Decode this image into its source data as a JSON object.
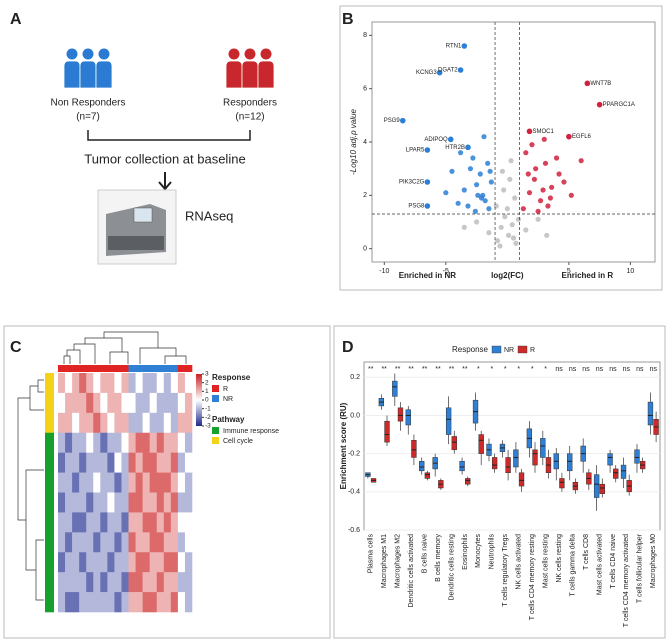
{
  "figure": {
    "panel_labels": [
      "A",
      "B",
      "C",
      "D"
    ]
  },
  "diagram": {
    "groups": [
      {
        "label": "Non Responders",
        "n": "(n=7)",
        "color": "#2a7bd1"
      },
      {
        "label": "Responders",
        "n": "(n=12)",
        "color": "#c8282d"
      }
    ],
    "step": "Tumor collection at baseline",
    "assay": "RNAseq"
  },
  "chart_data": [
    {
      "type": "scatter",
      "y_label": "-Log10 adj.p value",
      "x_label": "log2(FC)",
      "left_label": "Enriched in NR",
      "right_label": "Enriched in R",
      "xlim": [
        -11,
        12
      ],
      "ylim": [
        -0.5,
        8.5
      ],
      "xticks": [
        -10,
        -5,
        5,
        10
      ],
      "yticks": [
        0,
        2,
        4,
        6,
        8
      ],
      "vlines": [
        -1,
        1
      ],
      "hline": 1.3,
      "series": [
        {
          "color": "#2b7fd6",
          "x": [
            -1.5,
            -2,
            -2.5,
            -3,
            -1.8,
            -2.2,
            -3.5,
            -4,
            -1.3,
            -2.8,
            -3.2,
            -1.6,
            -2.4,
            -4.5,
            -5,
            -1.9,
            -2.6,
            -3.8,
            -1.4,
            -2.1
          ],
          "y": [
            1.5,
            2.0,
            2.4,
            3.0,
            1.8,
            2.8,
            2.2,
            1.7,
            2.5,
            3.4,
            1.6,
            3.2,
            2.0,
            2.9,
            2.1,
            4.2,
            1.4,
            3.6,
            2.9,
            1.9
          ]
        },
        {
          "color": "#d0213e",
          "x": [
            1.3,
            1.8,
            2.2,
            2.7,
            3.1,
            3.6,
            4.2,
            1.5,
            2.0,
            2.5,
            3.0,
            3.5,
            4.0,
            4.6,
            5.2,
            1.7,
            2.3,
            2.9,
            3.3,
            6
          ],
          "y": [
            1.5,
            2.1,
            2.6,
            1.8,
            3.2,
            2.3,
            2.8,
            3.6,
            3.9,
            1.4,
            4.1,
            1.9,
            3.4,
            2.5,
            2.0,
            2.8,
            3.0,
            2.2,
            1.6,
            3.3
          ]
        },
        {
          "color": "#bdbdbd",
          "x": [
            -0.8,
            -0.5,
            -0.2,
            0.1,
            0.4,
            0.7,
            -0.9,
            -0.3,
            0.2,
            0.6,
            -1.5,
            -2.5,
            1.5,
            2.5,
            -0.6,
            0.0,
            0.5,
            -3.5,
            3.2,
            0.9,
            -0.4,
            0.3
          ],
          "y": [
            0.3,
            0.8,
            1.2,
            0.5,
            0.9,
            0.2,
            1.6,
            2.2,
            2.6,
            1.9,
            0.6,
            1.0,
            0.7,
            1.1,
            0.1,
            1.5,
            0.4,
            0.8,
            0.5,
            1.1,
            2.9,
            3.3
          ]
        }
      ],
      "genes": [
        {
          "label": "RTN1",
          "x": -3.5,
          "y": 7.6,
          "color": "#2b7fd6"
        },
        {
          "label": "KCNG3",
          "x": -5.5,
          "y": 6.6,
          "color": "#2b7fd6"
        },
        {
          "label": "DGAT2",
          "x": -3.8,
          "y": 6.7,
          "color": "#2b7fd6"
        },
        {
          "label": "PSG9",
          "x": -8.5,
          "y": 4.8,
          "color": "#2b7fd6"
        },
        {
          "label": "ADIPOQ",
          "x": -4.6,
          "y": 4.1,
          "color": "#2b7fd6"
        },
        {
          "label": "HTR2B",
          "x": -3.2,
          "y": 3.8,
          "color": "#2b7fd6"
        },
        {
          "label": "LPAR5",
          "x": -6.5,
          "y": 3.7,
          "color": "#2b7fd6"
        },
        {
          "label": "PIK3C2G",
          "x": -6.5,
          "y": 2.5,
          "color": "#2b7fd6"
        },
        {
          "label": "PSG8",
          "x": -6.5,
          "y": 1.6,
          "color": "#2b7fd6"
        },
        {
          "label": "WNT7B",
          "x": 6.5,
          "y": 6.2,
          "color": "#d0213e"
        },
        {
          "label": "PPARGC1A",
          "x": 7.5,
          "y": 5.4,
          "color": "#d0213e"
        },
        {
          "label": "SMOC1",
          "x": 1.8,
          "y": 4.4,
          "color": "#d0213e"
        },
        {
          "label": "EGFL6",
          "x": 5,
          "y": 4.2,
          "color": "#d0213e"
        }
      ]
    },
    {
      "type": "heatmap",
      "vlim": [
        -3,
        3
      ],
      "colors": [
        "#1d2a8f",
        "#ffffff",
        "#cc1f1f"
      ],
      "colorbar_ticks": [
        3,
        2,
        1,
        0,
        -1,
        -2,
        -3
      ],
      "response_title": "Response",
      "pathway_title": "Pathway",
      "response_legend": [
        {
          "name": "R",
          "color": "#e02424"
        },
        {
          "name": "NR",
          "color": "#2f7fd4"
        }
      ],
      "pathway_legend": [
        {
          "name": "Immune response",
          "color": "#16a02c"
        },
        {
          "name": "Cell cycle",
          "color": "#f4d21a"
        }
      ],
      "columns": [
        "R",
        "R",
        "R",
        "R",
        "R",
        "R",
        "R",
        "R",
        "R",
        "R",
        "NR",
        "NR",
        "NR",
        "NR",
        "NR",
        "NR",
        "NR",
        "R",
        "R"
      ],
      "rows": [
        "Cell cycle",
        "Cell cycle",
        "Cell cycle",
        "Immune response",
        "Immune response",
        "Immune response",
        "Immune response",
        "Immune response",
        "Immune response",
        "Immune response",
        "Immune response",
        "Immune response"
      ],
      "values": [
        [
          1,
          0,
          1,
          2,
          1,
          0,
          1,
          1,
          0,
          1,
          -1,
          0,
          -1,
          -1,
          0,
          -1,
          0,
          1,
          0
        ],
        [
          0,
          1,
          1,
          1,
          2,
          1,
          0,
          1,
          1,
          0,
          0,
          -1,
          -1,
          0,
          -1,
          -1,
          -1,
          0,
          1
        ],
        [
          1,
          1,
          0,
          1,
          1,
          2,
          1,
          0,
          1,
          1,
          -1,
          -1,
          0,
          -1,
          -1,
          0,
          -1,
          1,
          1
        ],
        [
          -1,
          -2,
          -1,
          -1,
          0,
          -1,
          -2,
          -1,
          -1,
          0,
          1,
          2,
          2,
          1,
          2,
          1,
          1,
          0,
          -1
        ],
        [
          -2,
          -1,
          -1,
          -2,
          -1,
          -1,
          -1,
          -2,
          0,
          -1,
          2,
          1,
          2,
          2,
          1,
          1,
          2,
          -1,
          0
        ],
        [
          -1,
          -1,
          -2,
          -1,
          -1,
          0,
          -1,
          -1,
          -2,
          -1,
          1,
          2,
          1,
          2,
          2,
          2,
          1,
          0,
          -1
        ],
        [
          -2,
          -1,
          -1,
          -1,
          -2,
          -1,
          -1,
          0,
          -1,
          -1,
          2,
          2,
          1,
          1,
          2,
          1,
          2,
          -1,
          -1
        ],
        [
          -1,
          -1,
          -2,
          -2,
          -1,
          -1,
          -2,
          -1,
          -1,
          -2,
          1,
          1,
          2,
          2,
          1,
          2,
          1,
          0,
          0
        ],
        [
          -1,
          -2,
          -1,
          -1,
          -1,
          -2,
          -1,
          -1,
          -2,
          -1,
          2,
          1,
          1,
          2,
          2,
          1,
          1,
          -1,
          0
        ],
        [
          -2,
          -1,
          -1,
          -2,
          -1,
          -1,
          -1,
          -2,
          -1,
          -1,
          1,
          2,
          2,
          1,
          1,
          2,
          2,
          0,
          -1
        ],
        [
          -1,
          -1,
          -1,
          -1,
          -2,
          -1,
          -2,
          -1,
          -1,
          -2,
          2,
          2,
          1,
          1,
          2,
          1,
          1,
          -1,
          -1
        ],
        [
          -1,
          -2,
          -2,
          -1,
          -1,
          -1,
          -1,
          -1,
          -2,
          -1,
          1,
          1,
          2,
          2,
          1,
          1,
          2,
          0,
          -1
        ]
      ]
    },
    {
      "type": "box",
      "y_label": "Enrichment score (RU)",
      "legend_title": "Response",
      "ylim": [
        -0.6,
        0.28
      ],
      "yticks": [
        -0.6,
        -0.4,
        -0.2,
        {
          "value": 0,
          "label": "0.0"
        },
        0.2
      ],
      "categories": [
        "Plasma cells",
        "Macrophages M1",
        "Macrophages M2",
        "Dendritic cells activated",
        "B cells naive",
        "B cells memory",
        "Dendritic cells resting",
        "Eosinophils",
        "Monocytes",
        "Neutrophils",
        "T cells regulatory Tregs",
        "NK cells activated",
        "T cells CD4 memory resting",
        "Mast cells resting",
        "NK cells resting",
        "T cells gamma delta",
        "T cells CD8",
        "Mast cells activated",
        "T cells CD4 naive",
        "T cells CD4 memory activated",
        "T cells follicular helper",
        "Macrophages M0"
      ],
      "significance": [
        "**",
        "**",
        "**",
        "**",
        "**",
        "**",
        "**",
        "**",
        "*",
        "*",
        "*",
        "*",
        "*",
        "*",
        "ns",
        "ns",
        "ns",
        "ns",
        "ns",
        "ns",
        "ns",
        "ns"
      ],
      "series": [
        {
          "name": "NR",
          "color": "#2f7fd4",
          "median": [
            -0.31,
            0.07,
            0.15,
            0.0,
            -0.27,
            -0.25,
            -0.02,
            -0.27,
            0.02,
            -0.18,
            -0.17,
            -0.22,
            -0.12,
            -0.16,
            -0.24,
            -0.24,
            -0.2,
            -0.36,
            -0.22,
            -0.29,
            -0.22,
            0.0
          ],
          "q1": [
            -0.32,
            0.05,
            0.1,
            -0.05,
            -0.29,
            -0.28,
            -0.1,
            -0.29,
            -0.04,
            -0.21,
            -0.19,
            -0.27,
            -0.17,
            -0.22,
            -0.28,
            -0.29,
            -0.24,
            -0.43,
            -0.26,
            -0.33,
            -0.25,
            -0.05
          ],
          "q3": [
            -0.3,
            0.09,
            0.18,
            0.03,
            -0.24,
            -0.22,
            0.04,
            -0.24,
            0.08,
            -0.15,
            -0.15,
            -0.18,
            -0.07,
            -0.12,
            -0.2,
            -0.2,
            -0.16,
            -0.31,
            -0.2,
            -0.26,
            -0.18,
            0.07
          ],
          "low": [
            -0.33,
            0.03,
            0.05,
            -0.1,
            -0.31,
            -0.32,
            -0.15,
            -0.31,
            -0.08,
            -0.24,
            -0.22,
            -0.3,
            -0.22,
            -0.26,
            -0.34,
            -0.34,
            -0.3,
            -0.5,
            -0.3,
            -0.38,
            -0.3,
            -0.1
          ],
          "high": [
            -0.3,
            0.11,
            0.22,
            0.05,
            -0.22,
            -0.2,
            0.1,
            -0.22,
            0.12,
            -0.12,
            -0.13,
            -0.14,
            -0.03,
            -0.08,
            -0.17,
            -0.16,
            -0.12,
            -0.26,
            -0.18,
            -0.22,
            -0.15,
            0.12
          ]
        },
        {
          "name": "R",
          "color": "#cf2a2a",
          "median": [
            -0.34,
            -0.1,
            0.0,
            -0.18,
            -0.31,
            -0.36,
            -0.14,
            -0.34,
            -0.13,
            -0.26,
            -0.27,
            -0.34,
            -0.2,
            -0.26,
            -0.35,
            -0.37,
            -0.33,
            -0.38,
            -0.3,
            -0.37,
            -0.26,
            -0.06
          ],
          "q1": [
            -0.35,
            -0.14,
            -0.03,
            -0.22,
            -0.33,
            -0.38,
            -0.18,
            -0.36,
            -0.2,
            -0.28,
            -0.3,
            -0.37,
            -0.26,
            -0.3,
            -0.38,
            -0.39,
            -0.36,
            -0.41,
            -0.33,
            -0.4,
            -0.28,
            -0.1
          ],
          "q3": [
            -0.33,
            -0.03,
            0.04,
            -0.13,
            -0.3,
            -0.34,
            -0.11,
            -0.33,
            -0.1,
            -0.22,
            -0.22,
            -0.3,
            -0.18,
            -0.22,
            -0.33,
            -0.35,
            -0.3,
            -0.36,
            -0.28,
            -0.34,
            -0.24,
            -0.02
          ],
          "low": [
            -0.35,
            -0.16,
            -0.08,
            -0.26,
            -0.34,
            -0.39,
            -0.2,
            -0.37,
            -0.26,
            -0.3,
            -0.34,
            -0.4,
            -0.3,
            -0.33,
            -0.4,
            -0.41,
            -0.39,
            -0.43,
            -0.35,
            -0.42,
            -0.3,
            -0.14
          ],
          "high": [
            -0.33,
            0.0,
            0.07,
            -0.1,
            -0.29,
            -0.33,
            -0.08,
            -0.32,
            -0.08,
            -0.2,
            -0.18,
            -0.28,
            -0.14,
            -0.18,
            -0.3,
            -0.33,
            -0.28,
            -0.33,
            -0.26,
            -0.31,
            -0.22,
            0.02
          ]
        }
      ]
    }
  ]
}
